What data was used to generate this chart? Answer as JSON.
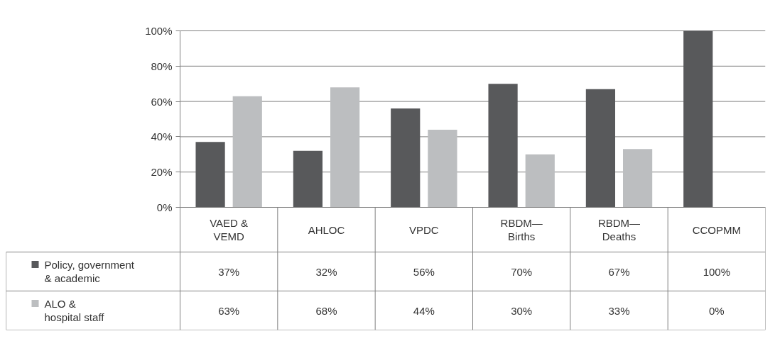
{
  "chart_data": {
    "type": "bar",
    "categories": [
      "VAED &\nVEMD",
      "AHLOC",
      "VPDC",
      "RBDM—\nBirths",
      "RBDM—\nDeaths",
      "CCOPMM"
    ],
    "series": [
      {
        "name": "Policy, government\n& academic",
        "color": "#58595b",
        "values": [
          37,
          32,
          56,
          70,
          67,
          100
        ],
        "value_labels": [
          "37%",
          "32%",
          "56%",
          "70%",
          "67%",
          "100%"
        ]
      },
      {
        "name": "ALO &\nhospital staff",
        "color": "#bcbec0",
        "values": [
          63,
          68,
          44,
          30,
          33,
          0
        ],
        "value_labels": [
          "63%",
          "68%",
          "44%",
          "30%",
          "33%",
          "0%"
        ]
      }
    ],
    "ylim": [
      0,
      100
    ],
    "yticks": [
      {
        "value": 0,
        "label": "0%"
      },
      {
        "value": 20,
        "label": "20%"
      },
      {
        "value": 40,
        "label": "40%"
      },
      {
        "value": 60,
        "label": "60%"
      },
      {
        "value": 80,
        "label": "80%"
      },
      {
        "value": 100,
        "label": "100%"
      }
    ],
    "grid": "y",
    "legend": "bottom"
  }
}
